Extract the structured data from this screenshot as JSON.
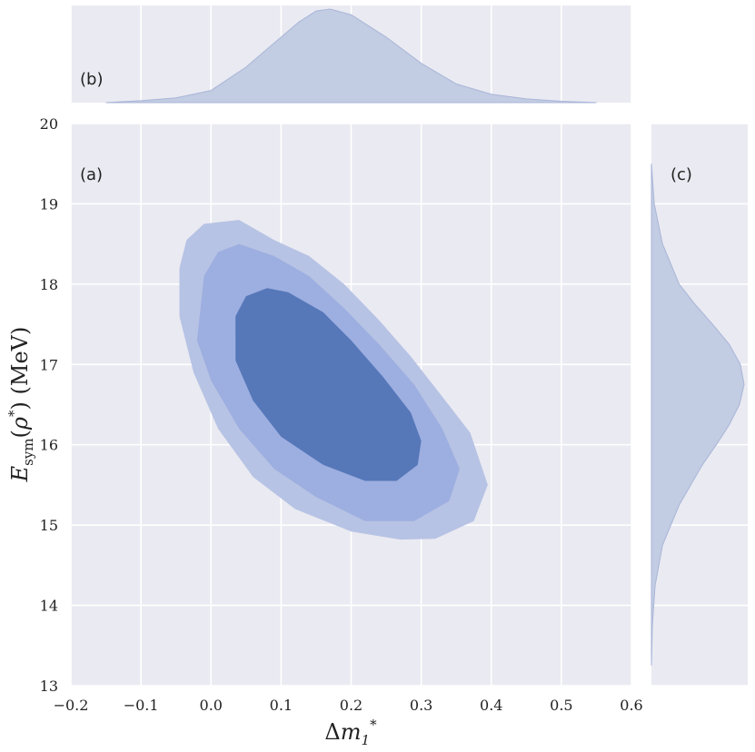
{
  "chart_data": {
    "type": "joint-kde",
    "panels": {
      "joint": {
        "label": "(a)",
        "type": "contour",
        "x_range": [
          -0.2,
          0.6
        ],
        "y_range": [
          13,
          20
        ],
        "x_ticks": [
          -0.2,
          -0.1,
          0.0,
          0.1,
          0.2,
          0.3,
          0.4,
          0.5,
          0.6
        ],
        "y_ticks": [
          13,
          14,
          15,
          16,
          17,
          18,
          19,
          20
        ],
        "x_tick_labels": [
          "−0.2",
          "−0.1",
          "0.0",
          "0.1",
          "0.2",
          "0.3",
          "0.4",
          "0.5",
          "0.6"
        ],
        "y_tick_labels": [
          "13",
          "14",
          "15",
          "16",
          "17",
          "18",
          "19",
          "20"
        ],
        "contour_levels": [
          {
            "level": "outer",
            "color": "#b7c3e4",
            "points": [
              [
                -0.045,
                18.2
              ],
              [
                -0.035,
                18.55
              ],
              [
                -0.01,
                18.75
              ],
              [
                0.04,
                18.8
              ],
              [
                0.09,
                18.55
              ],
              [
                0.14,
                18.35
              ],
              [
                0.19,
                18.0
              ],
              [
                0.24,
                17.55
              ],
              [
                0.285,
                17.1
              ],
              [
                0.33,
                16.6
              ],
              [
                0.37,
                16.15
              ],
              [
                0.395,
                15.5
              ],
              [
                0.375,
                15.05
              ],
              [
                0.32,
                14.83
              ],
              [
                0.27,
                14.82
              ],
              [
                0.2,
                14.92
              ],
              [
                0.12,
                15.2
              ],
              [
                0.06,
                15.6
              ],
              [
                0.01,
                16.2
              ],
              [
                -0.025,
                16.9
              ],
              [
                -0.045,
                17.6
              ]
            ]
          },
          {
            "level": "middle",
            "color": "#9daee0",
            "points": [
              [
                -0.015,
                17.7
              ],
              [
                -0.01,
                18.1
              ],
              [
                0.01,
                18.4
              ],
              [
                0.04,
                18.5
              ],
              [
                0.09,
                18.35
              ],
              [
                0.14,
                18.1
              ],
              [
                0.19,
                17.7
              ],
              [
                0.24,
                17.25
              ],
              [
                0.29,
                16.75
              ],
              [
                0.33,
                16.2
              ],
              [
                0.355,
                15.7
              ],
              [
                0.34,
                15.3
              ],
              [
                0.29,
                15.05
              ],
              [
                0.22,
                15.05
              ],
              [
                0.15,
                15.35
              ],
              [
                0.09,
                15.7
              ],
              [
                0.04,
                16.2
              ],
              [
                0.0,
                16.8
              ],
              [
                -0.02,
                17.3
              ]
            ]
          },
          {
            "level": "inner",
            "color": "#5678b9",
            "points": [
              [
                0.035,
                17.6
              ],
              [
                0.05,
                17.85
              ],
              [
                0.08,
                17.95
              ],
              [
                0.11,
                17.9
              ],
              [
                0.16,
                17.65
              ],
              [
                0.2,
                17.3
              ],
              [
                0.245,
                16.85
              ],
              [
                0.285,
                16.4
              ],
              [
                0.3,
                16.05
              ],
              [
                0.295,
                15.75
              ],
              [
                0.265,
                15.55
              ],
              [
                0.22,
                15.55
              ],
              [
                0.16,
                15.75
              ],
              [
                0.1,
                16.1
              ],
              [
                0.06,
                16.55
              ],
              [
                0.035,
                17.05
              ]
            ]
          }
        ]
      },
      "top": {
        "label": "(b)",
        "type": "kde-x",
        "color": "#c2cce2",
        "x": [
          -0.15,
          -0.1,
          -0.05,
          0.0,
          0.05,
          0.1,
          0.125,
          0.15,
          0.17,
          0.2,
          0.25,
          0.3,
          0.35,
          0.4,
          0.45,
          0.5,
          0.55
        ],
        "density": [
          0.0,
          0.02,
          0.05,
          0.13,
          0.38,
          0.7,
          0.86,
          0.98,
          1.0,
          0.94,
          0.7,
          0.42,
          0.2,
          0.09,
          0.04,
          0.015,
          0.0
        ]
      },
      "right": {
        "label": "(c)",
        "type": "kde-y",
        "color": "#c2cce2",
        "y": [
          13.25,
          13.75,
          14.25,
          14.75,
          15.25,
          15.75,
          16.0,
          16.25,
          16.5,
          16.75,
          17.0,
          17.25,
          17.5,
          17.75,
          18.0,
          18.5,
          19.0,
          19.5
        ],
        "density": [
          0.0,
          0.01,
          0.04,
          0.12,
          0.3,
          0.55,
          0.7,
          0.84,
          0.95,
          1.0,
          0.96,
          0.84,
          0.66,
          0.47,
          0.3,
          0.12,
          0.03,
          0.0
        ]
      }
    },
    "xlabel": "Δm₁*",
    "ylabel": "E_sym(ρ*) (MeV)",
    "grid": true
  }
}
